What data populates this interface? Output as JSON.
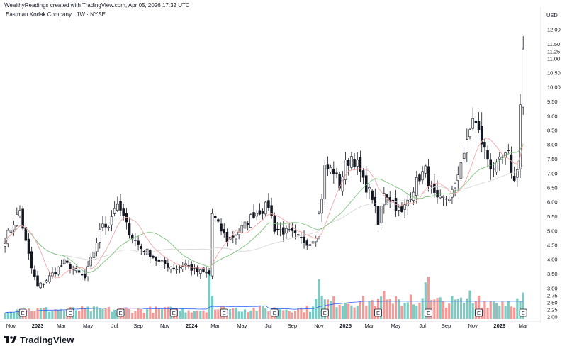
{
  "header": {
    "credit": "WealthyReadings created with TradingView.com, Apr 05, 2026 17:32 UTC",
    "symbol": "Eastman Kodak Company · 1W · NYSE",
    "currency": "USD"
  },
  "brand": {
    "name": "TradingView",
    "logo_icon": "tradingview-logo-icon"
  },
  "colors": {
    "up": "#26a69a",
    "down": "#ef5350",
    "candle_up_body": "#ffffff",
    "candle_down_body": "#131722",
    "ma_fast": "#f4a6a6",
    "ma_mid": "#7fc27f",
    "ma_slow": "#d8d8d8",
    "vol_ma": "#2962ff"
  },
  "chart_data": {
    "type": "candlestick",
    "title": "Eastman Kodak Company · 1W · NYSE",
    "ylabel": "USD",
    "ylim": [
      1.8,
      12.25
    ],
    "y_ticks": [
      "2.00",
      "2.25",
      "2.50",
      "2.75",
      "3.00",
      "3.50",
      "4.00",
      "4.50",
      "5.00",
      "5.50",
      "6.00",
      "6.50",
      "7.00",
      "7.50",
      "8.00",
      "8.50",
      "9.00",
      "9.50",
      "10.00",
      "10.50",
      "11.00",
      "11.25",
      "11.50",
      "12.00"
    ],
    "x_ticks": [
      {
        "label": "Nov",
        "week": 2,
        "bold": false
      },
      {
        "label": "2023",
        "week": 11,
        "bold": true
      },
      {
        "label": "Mar",
        "week": 19,
        "bold": false
      },
      {
        "label": "May",
        "week": 28,
        "bold": false
      },
      {
        "label": "Jul",
        "week": 37,
        "bold": false
      },
      {
        "label": "Sep",
        "week": 45,
        "bold": false
      },
      {
        "label": "Nov",
        "week": 54,
        "bold": false
      },
      {
        "label": "2024",
        "week": 63,
        "bold": true
      },
      {
        "label": "Mar",
        "week": 71,
        "bold": false
      },
      {
        "label": "May",
        "week": 80,
        "bold": false
      },
      {
        "label": "Jul",
        "week": 89,
        "bold": false
      },
      {
        "label": "Sep",
        "week": 97,
        "bold": false
      },
      {
        "label": "Nov",
        "week": 106,
        "bold": false
      },
      {
        "label": "2025",
        "week": 115,
        "bold": true
      },
      {
        "label": "Mar",
        "week": 123,
        "bold": false
      },
      {
        "label": "May",
        "week": 132,
        "bold": false
      },
      {
        "label": "Jul",
        "week": 141,
        "bold": false
      },
      {
        "label": "Sep",
        "week": 149,
        "bold": false
      },
      {
        "label": "Nov",
        "week": 158,
        "bold": false
      },
      {
        "label": "2026",
        "week": 167,
        "bold": true
      },
      {
        "label": "Mar",
        "week": 175,
        "bold": false
      }
    ],
    "earnings_marker": "E",
    "earnings_weeks": [
      6,
      22,
      39,
      57,
      74,
      91,
      108,
      126,
      143,
      160,
      175
    ],
    "price_keys": [
      [
        0,
        4.7
      ],
      [
        3,
        5.3
      ],
      [
        5,
        5.7
      ],
      [
        7,
        4.6
      ],
      [
        9,
        3.7
      ],
      [
        11,
        3.05
      ],
      [
        14,
        3.3
      ],
      [
        17,
        3.6
      ],
      [
        20,
        3.9
      ],
      [
        24,
        3.6
      ],
      [
        27,
        3.35
      ],
      [
        30,
        4.3
      ],
      [
        33,
        5.3
      ],
      [
        35,
        5.2
      ],
      [
        37,
        5.85
      ],
      [
        39,
        5.7
      ],
      [
        41,
        5.2
      ],
      [
        43,
        4.8
      ],
      [
        46,
        4.4
      ],
      [
        49,
        4.2
      ],
      [
        52,
        3.9
      ],
      [
        55,
        3.8
      ],
      [
        58,
        3.7
      ],
      [
        61,
        3.85
      ],
      [
        64,
        3.6
      ],
      [
        67,
        3.55
      ],
      [
        69,
        3.5
      ],
      [
        70,
        5.6
      ],
      [
        72,
        5.2
      ],
      [
        75,
        4.7
      ],
      [
        78,
        4.9
      ],
      [
        81,
        5.2
      ],
      [
        84,
        5.6
      ],
      [
        87,
        5.75
      ],
      [
        89,
        5.9
      ],
      [
        91,
        5.1
      ],
      [
        94,
        5.0
      ],
      [
        97,
        4.9
      ],
      [
        100,
        4.7
      ],
      [
        103,
        4.6
      ],
      [
        105,
        4.9
      ],
      [
        107,
        6.2
      ],
      [
        108,
        7.2
      ],
      [
        111,
        7.1
      ],
      [
        113,
        6.6
      ],
      [
        115,
        7.3
      ],
      [
        117,
        7.6
      ],
      [
        119,
        7.3
      ],
      [
        121,
        6.7
      ],
      [
        124,
        6.2
      ],
      [
        126,
        5.2
      ],
      [
        128,
        6.4
      ],
      [
        131,
        6.0
      ],
      [
        134,
        5.6
      ],
      [
        137,
        6.3
      ],
      [
        140,
        6.9
      ],
      [
        142,
        7.1
      ],
      [
        144,
        6.4
      ],
      [
        146,
        6.0
      ],
      [
        148,
        6.1
      ],
      [
        150,
        6.2
      ],
      [
        152,
        6.5
      ],
      [
        154,
        7.5
      ],
      [
        156,
        8.0
      ],
      [
        158,
        9.0
      ],
      [
        160,
        8.4
      ],
      [
        162,
        7.8
      ],
      [
        164,
        7.3
      ],
      [
        166,
        7.2
      ],
      [
        168,
        7.5
      ],
      [
        170,
        7.6
      ],
      [
        172,
        6.7
      ],
      [
        173,
        7.3
      ],
      [
        174,
        9.4
      ],
      [
        175,
        11.3
      ]
    ],
    "vol_ma_level": 0.35,
    "volume_spikes": [
      {
        "week": 69,
        "value": 1.0,
        "up": true
      },
      {
        "week": 70,
        "value": 0.45,
        "up": true
      },
      {
        "week": 106,
        "value": 0.78,
        "up": true
      },
      {
        "week": 107,
        "value": 0.46,
        "up": true
      },
      {
        "week": 126,
        "value": 0.4,
        "up": false
      },
      {
        "week": 128,
        "value": 0.55,
        "up": false
      },
      {
        "week": 131,
        "value": 0.3,
        "up": false
      },
      {
        "week": 137,
        "value": 0.48,
        "up": false
      },
      {
        "week": 142,
        "value": 0.72,
        "up": true
      },
      {
        "week": 143,
        "value": 0.83,
        "up": false
      },
      {
        "week": 157,
        "value": 0.56,
        "up": true
      },
      {
        "week": 160,
        "value": 0.46,
        "up": false
      },
      {
        "week": 175,
        "value": 0.52,
        "up": true
      }
    ]
  }
}
